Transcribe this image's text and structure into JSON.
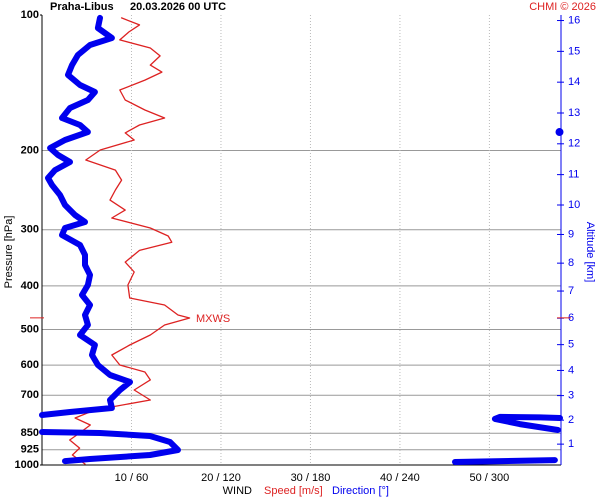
{
  "chart_data": {
    "type": "wind-profile",
    "station": "Praha-Libus",
    "title": "20.03.2026 00 UTC",
    "credit": "CHMI © 2026",
    "xlabel": "WIND",
    "ylabel": "Pressure [hPa]",
    "y2label": "Altitude [km]",
    "xlim": [
      0,
      58
    ],
    "x2lim": [
      0,
      348
    ],
    "xticks": [
      {
        "value": 10,
        "label": "10 / 60"
      },
      {
        "value": 20,
        "label": "20 / 120"
      },
      {
        "value": 30,
        "label": "30 / 180"
      },
      {
        "value": 40,
        "label": "40 / 240"
      },
      {
        "value": 50,
        "label": "50 / 300"
      }
    ],
    "ylim": [
      100,
      1000
    ],
    "ylog": true,
    "yticks": [
      100,
      200,
      300,
      400,
      500,
      600,
      700,
      850,
      925,
      1000
    ],
    "y2ticks": [
      1,
      2,
      3,
      4,
      5,
      6,
      7,
      8,
      9,
      10,
      11,
      12,
      13,
      14,
      15,
      16
    ],
    "grid": true,
    "annotation": {
      "text": "MXWS",
      "pressure": 471,
      "color": "#dd2222"
    },
    "series": [
      {
        "name": "Speed [m/s]",
        "color": "#dd2222",
        "axis": "x",
        "pressure": [
          101.5,
          105.2,
          109.1,
          113.6,
          118.4,
          123.3,
          129.2,
          133.9,
          139.5,
          146.8,
          154.5,
          162.6,
          169.4,
          175.6,
          182.8,
          189.6,
          199.5,
          210,
          221.1,
          232.7,
          244.9,
          257.8,
          271.3,
          282.5,
          297.4,
          309.9,
          319.8,
          333.5,
          354,
          372.5,
          398.1,
          425.5,
          441.1,
          464.2,
          471.3,
          488.6,
          514.2,
          541.2,
          569.6,
          599.5,
          621.5,
          647,
          681.3,
          717.1,
          754.6,
          786.3,
          815,
          849,
          880,
          917,
          950,
          995
        ],
        "values": [
          8.9,
          10.9,
          9.7,
          8.7,
          12.1,
          13.2,
          12.1,
          13.4,
          11.5,
          8.7,
          9.3,
          11.5,
          13.7,
          10.9,
          9.3,
          10.3,
          6.5,
          4.9,
          8.2,
          8.9,
          8.2,
          7.6,
          9.3,
          7.8,
          12.1,
          14.1,
          14.5,
          10.9,
          9.3,
          10.3,
          9.6,
          9.8,
          13.7,
          15.2,
          16.5,
          13.7,
          12.1,
          9.8,
          7.8,
          8.7,
          11.5,
          12.1,
          10.3,
          12.1,
          5.9,
          3.7,
          5.4,
          4.2,
          3.1,
          4.2,
          3.4,
          4.8
        ]
      },
      {
        "name": "Direction [°]",
        "color": "#0000ee",
        "axis": "x2",
        "pressure": [
          101.5,
          106.9,
          112.5,
          116.6,
          122.7,
          129.2,
          135.9,
          143.1,
          148.3,
          154.5,
          160.9,
          169.4,
          175.6,
          182,
          189.6,
          197.5,
          204.7,
          212.2,
          221.1,
          230.3,
          238.7,
          251.2,
          264.4,
          278.3,
          288.4,
          297.4,
          308.3,
          324.5,
          341.5,
          359.4,
          378.3,
          398.1,
          419.1,
          441.1,
          464.2,
          488.6,
          514.2,
          541.2,
          569.6,
          599.5,
          631,
          654,
          681.3,
          717.1,
          746.9,
          762.3,
          774.3,
          null,
          786.3,
          784,
          782,
          790,
          811,
          836,
          null,
          844.6,
          849,
          862,
          889,
          926,
          950,
          970,
          980,
          null,
          985,
          975,
          null,
          182
        ],
        "values": [
          38.9,
          37.5,
          46.9,
          32.2,
          24.1,
          20.1,
          17.4,
          25.5,
          35.5,
          30.8,
          18.8,
          13.4,
          25.5,
          30.8,
          15.4,
          5.4,
          10.7,
          18.8,
          8.7,
          4,
          6.7,
          12.1,
          15.4,
          22.1,
          28.8,
          15.4,
          13.4,
          25.5,
          28.8,
          28.8,
          32.2,
          30.8,
          26.8,
          32.2,
          28.8,
          30.8,
          25.5,
          35.5,
          33.5,
          37.5,
          45.6,
          59,
          52.3,
          45.6,
          46.9,
          18.8,
          0,
          null,
          347.3,
          334,
          307,
          303.7,
          320.4,
          345.9,
          null,
          0,
          38.9,
          72.4,
          85.8,
          91.2,
          72.4,
          32.2,
          15.4,
          null,
          276.9,
          343.9,
          null,
          347
        ]
      }
    ]
  }
}
